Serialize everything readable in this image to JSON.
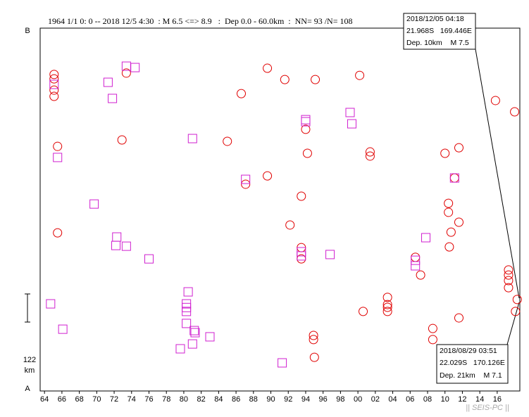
{
  "chart_data": {
    "type": "scatter",
    "title": "1964 1/1 0: 0 -- 2018 12/5 4:30  : M 6.5 <=> 8.9   :  Dep 0.0 - 60.0km  :  NN= 93 /N= 108",
    "y_top_label": "B",
    "y_bottom_label": "A",
    "scale_bar_length": 122,
    "scale_bar_unit": "km",
    "xlim": [
      1963.5,
      2018.6
    ],
    "ylim": [
      0,
      1574
    ],
    "xticks": [
      {
        "value": 1964,
        "label": "64"
      },
      {
        "value": 1966,
        "label": "66"
      },
      {
        "value": 1968,
        "label": "68"
      },
      {
        "value": 1970,
        "label": "70"
      },
      {
        "value": 1972,
        "label": "72"
      },
      {
        "value": 1974,
        "label": "74"
      },
      {
        "value": 1976,
        "label": "76"
      },
      {
        "value": 1978,
        "label": "78"
      },
      {
        "value": 1980,
        "label": "80"
      },
      {
        "value": 1982,
        "label": "82"
      },
      {
        "value": 1984,
        "label": "84"
      },
      {
        "value": 1986,
        "label": "86"
      },
      {
        "value": 1988,
        "label": "88"
      },
      {
        "value": 1990,
        "label": "90"
      },
      {
        "value": 1992,
        "label": "92"
      },
      {
        "value": 1994,
        "label": "94"
      },
      {
        "value": 1996,
        "label": "96"
      },
      {
        "value": 1998,
        "label": "98"
      },
      {
        "value": 2000,
        "label": "00"
      },
      {
        "value": 2002,
        "label": "02"
      },
      {
        "value": 2004,
        "label": "04"
      },
      {
        "value": 2006,
        "label": "06"
      },
      {
        "value": 2008,
        "label": "08"
      },
      {
        "value": 2010,
        "label": "10"
      },
      {
        "value": 2012,
        "label": "12"
      },
      {
        "value": 2014,
        "label": "14"
      },
      {
        "value": 2016,
        "label": "16"
      }
    ],
    "series": [
      {
        "marker": "circle",
        "color": "#e00000",
        "x": [
          1965.1,
          1965.1,
          1965.1,
          1965.1,
          1965.5,
          1965.5,
          1973.4,
          1972.9,
          1986.6,
          1985.0,
          1989.6,
          1991.6,
          1989.6,
          1987.1,
          1992.2,
          1993.5,
          1993.5,
          1993.5,
          1994.0,
          1994.2,
          1995.1,
          2000.2,
          2001.4,
          2001.4,
          2000.6,
          2003.4,
          2003.4,
          2003.4,
          2003.4,
          2010.0,
          2011.6,
          2011.1,
          2010.4,
          2010.4,
          2010.7,
          2011.6,
          2010.5,
          2011.6,
          2007.2,
          2006.6,
          2008.6,
          2008.6,
          1994.9,
          1994.9,
          1995.0,
          2015.8,
          2018.0,
          2017.3,
          2017.3,
          2017.3,
          2017.3,
          2018.3,
          2018.1
        ],
        "y": [
          1373,
          1354,
          1305,
          1278,
          1061,
          686,
          1379,
          1089,
          1290,
          1083,
          1400,
          1351,
          933,
          897,
          720,
          845,
          622,
          573,
          1135,
          1031,
          1351,
          1369,
          1037,
          1019,
          345,
          406,
          375,
          363,
          345,
          1031,
          1055,
          924,
          814,
          775,
          689,
          732,
          625,
          317,
          503,
          580,
          271,
          223,
          241,
          223,
          146,
          1260,
          1211,
          525,
          503,
          479,
          448,
          397,
          345
        ]
      },
      {
        "marker": "square",
        "color": "#d020d0",
        "x": [
          1965.1,
          1965.5,
          1969.7,
          1971.3,
          1971.8,
          1973.4,
          1974.4,
          1972.3,
          1972.2,
          1973.4,
          1976.0,
          1981.0,
          1980.5,
          1980.3,
          1980.3,
          1980.3,
          1980.3,
          1981.2,
          1981.3,
          1979.6,
          1981.0,
          1983.0,
          1964.7,
          1966.1,
          1987.1,
          1994.0,
          1994.0,
          1993.5,
          1993.5,
          1996.8,
          1991.3,
          1999.1,
          1999.3,
          2006.6,
          2006.6,
          2007.8,
          2011.1
        ],
        "y": [
          1330,
          1013,
          811,
          1339,
          1269,
          1409,
          1403,
          668,
          631,
          628,
          573,
          1095,
          430,
          378,
          362,
          345,
          293,
          262,
          253,
          183,
          204,
          235,
          378,
          268,
          918,
          1177,
          1168,
          604,
          586,
          592,
          122,
          1208,
          1159,
          567,
          543,
          665,
          924
        ]
      }
    ],
    "annotations": [
      {
        "lines": [
          "2018/12/05 04:18",
          "21.968S   169.446E",
          "Dep. 10km    M 7.5"
        ]
      },
      {
        "lines": [
          "2018/08/29 03:51",
          "22.029S   170.126E",
          "Dep. 21km    M 7.1"
        ]
      }
    ]
  },
  "footer": "|| SEIS-PC ||"
}
